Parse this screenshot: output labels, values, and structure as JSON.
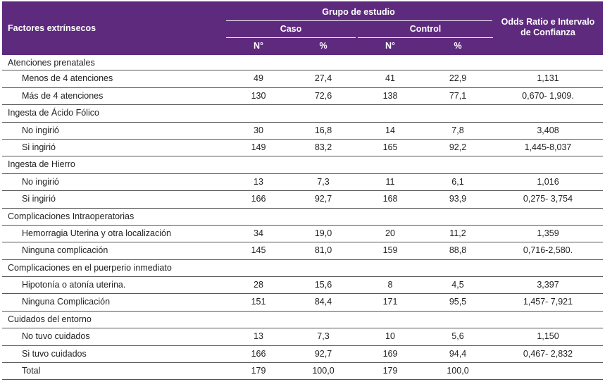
{
  "header": {
    "col1": "Factores extrínsecos",
    "group": "Grupo de estudio",
    "caso": "Caso",
    "control": "Control",
    "or": "Odds Ratio  e Intervalo de Confianza",
    "n1": "N°",
    "p1": "%",
    "n2": "N°",
    "p2": "%"
  },
  "rows": [
    {
      "type": "section",
      "label": "Atenciones prenatales"
    },
    {
      "type": "data",
      "label": "Menos de 4 atenciones",
      "caso_n": "49",
      "caso_p": "27,4",
      "ctrl_n": "41",
      "ctrl_p": "22,9",
      "or": "1,131"
    },
    {
      "type": "data",
      "label": "Más de 4 atenciones",
      "caso_n": "130",
      "caso_p": "72,6",
      "ctrl_n": "138",
      "ctrl_p": "77,1",
      "or": "0,670- 1,909."
    },
    {
      "type": "section",
      "label": "Ingesta de Ácido Fólico"
    },
    {
      "type": "data",
      "label": "No ingirió",
      "caso_n": "30",
      "caso_p": "16,8",
      "ctrl_n": "14",
      "ctrl_p": "7,8",
      "or": "3,408"
    },
    {
      "type": "data",
      "label": "Si ingirió",
      "caso_n": "149",
      "caso_p": "83,2",
      "ctrl_n": "165",
      "ctrl_p": "92,2",
      "or": "1,445-8,037"
    },
    {
      "type": "section",
      "label": "Ingesta de Hierro"
    },
    {
      "type": "data",
      "label": "No ingirió",
      "caso_n": "13",
      "caso_p": "7,3",
      "ctrl_n": "11",
      "ctrl_p": "6,1",
      "or": "1,016"
    },
    {
      "type": "data",
      "label": "Si ingirió",
      "caso_n": "166",
      "caso_p": "92,7",
      "ctrl_n": "168",
      "ctrl_p": "93,9",
      "or": "0,275- 3,754"
    },
    {
      "type": "section",
      "label": "Complicaciones Intraoperatorias"
    },
    {
      "type": "data",
      "label": "Hemorragia Uterina y otra localización",
      "caso_n": "34",
      "caso_p": "19,0",
      "ctrl_n": "20",
      "ctrl_p": "11,2",
      "or": "1,359"
    },
    {
      "type": "data",
      "label": "Ninguna  complicación",
      "caso_n": "145",
      "caso_p": "81,0",
      "ctrl_n": "159",
      "ctrl_p": "88,8",
      "or": "0,716-2,580."
    },
    {
      "type": "section",
      "label": "Complicaciones en el puerperio inmediato"
    },
    {
      "type": "data",
      "label": "Hipotonía o atonía uterina.",
      "caso_n": "28",
      "caso_p": "15,6",
      "ctrl_n": "8",
      "ctrl_p": "4,5",
      "or": "3,397"
    },
    {
      "type": "data",
      "label": "Ninguna Complicación",
      "caso_n": "151",
      "caso_p": "84,4",
      "ctrl_n": "171",
      "ctrl_p": "95,5",
      "or": "1,457- 7,921"
    },
    {
      "type": "section",
      "label": "Cuidados del entorno"
    },
    {
      "type": "data",
      "label": "No tuvo  cuidados",
      "caso_n": "13",
      "caso_p": "7,3",
      "ctrl_n": "10",
      "ctrl_p": "5,6",
      "or": "1,150"
    },
    {
      "type": "data",
      "label": "Si tuvo cuidados",
      "caso_n": "166",
      "caso_p": "92,7",
      "ctrl_n": "169",
      "ctrl_p": "94,4",
      "or": "0,467- 2,832"
    },
    {
      "type": "data",
      "label": "Total",
      "caso_n": "179",
      "caso_p": "100,0",
      "ctrl_n": "179",
      "ctrl_p": "100,0",
      "or": ""
    }
  ]
}
